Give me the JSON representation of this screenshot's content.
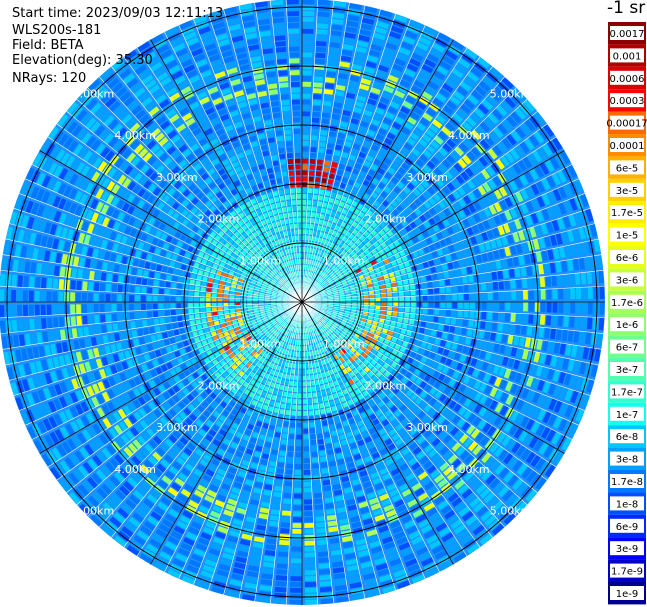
{
  "header": {
    "start_time": "Start time: 2023/09/03 12:11:13",
    "instrument": "WLS200s-181",
    "field": "Field: BETA",
    "elevation": "Elevation(deg): 35.30",
    "nrays": "NRays: 120"
  },
  "colorbar": {
    "title": "-1 sr",
    "labels": [
      "0.0017",
      "0.001",
      "0.0006",
      "0.0003",
      "0.00017",
      "0.0001",
      "6e-5",
      "3e-5",
      "1.7e-5",
      "1e-5",
      "6e-6",
      "3e-6",
      "1.7e-6",
      "1e-6",
      "6e-7",
      "3e-7",
      "1.7e-7",
      "1e-7",
      "6e-8",
      "3e-8",
      "1.7e-8",
      "1e-8",
      "6e-9",
      "3e-9",
      "1.7e-9",
      "1e-9"
    ],
    "colors": [
      "#8b0000",
      "#b00000",
      "#d80000",
      "#ff0000",
      "#ff6a00",
      "#ff8c00",
      "#ffb000",
      "#ffd000",
      "#ffee00",
      "#ffff00",
      "#e6ff1a",
      "#c8ff37",
      "#aaff55",
      "#8cff73",
      "#6eff91",
      "#50ffaf",
      "#32ffcd",
      "#14ffeb",
      "#00c8ff",
      "#00a0ff",
      "#0078ff",
      "#0050ff",
      "#0028ff",
      "#0000ff",
      "#0000c8",
      "#00008b"
    ]
  },
  "chart_data": {
    "type": "heatmap",
    "projection": "polar (PPI scan)",
    "field": "BETA",
    "n_rays": 120,
    "elevation_deg": 35.3,
    "range_ring_labels": [
      "1.00km",
      "2.00km",
      "3.00km",
      "4.00km",
      "5.00km"
    ],
    "range_rings_km": [
      1,
      2,
      3,
      4,
      5
    ],
    "spokes_deg": [
      0,
      30,
      60,
      90,
      120,
      150,
      180,
      210,
      240,
      270,
      300,
      330
    ],
    "colorscale_unit": "-1 sr",
    "colorscale": "log, 1e-9 to 0.0017",
    "features": [
      {
        "description": "near-field background",
        "range_km": [
          0,
          2
        ],
        "approx_beta": "1e-7 to 3e-7"
      },
      {
        "description": "outer background",
        "range_km": [
          2,
          5.2
        ],
        "approx_beta": "1e-8 to 6e-8"
      },
      {
        "description": "high-backscatter arc, east/southwest",
        "range_km": [
          1.1,
          1.6
        ],
        "approx_beta": "1e-5 to 0.001"
      },
      {
        "description": "high-backscatter segment, north",
        "range_km": [
          2.1,
          2.4
        ],
        "approx_beta": "0.0003 to 0.0017"
      },
      {
        "description": "elevated ring",
        "range_km": [
          3.6,
          4.2
        ],
        "approx_beta": "3e-6 to 1e-5"
      }
    ]
  }
}
